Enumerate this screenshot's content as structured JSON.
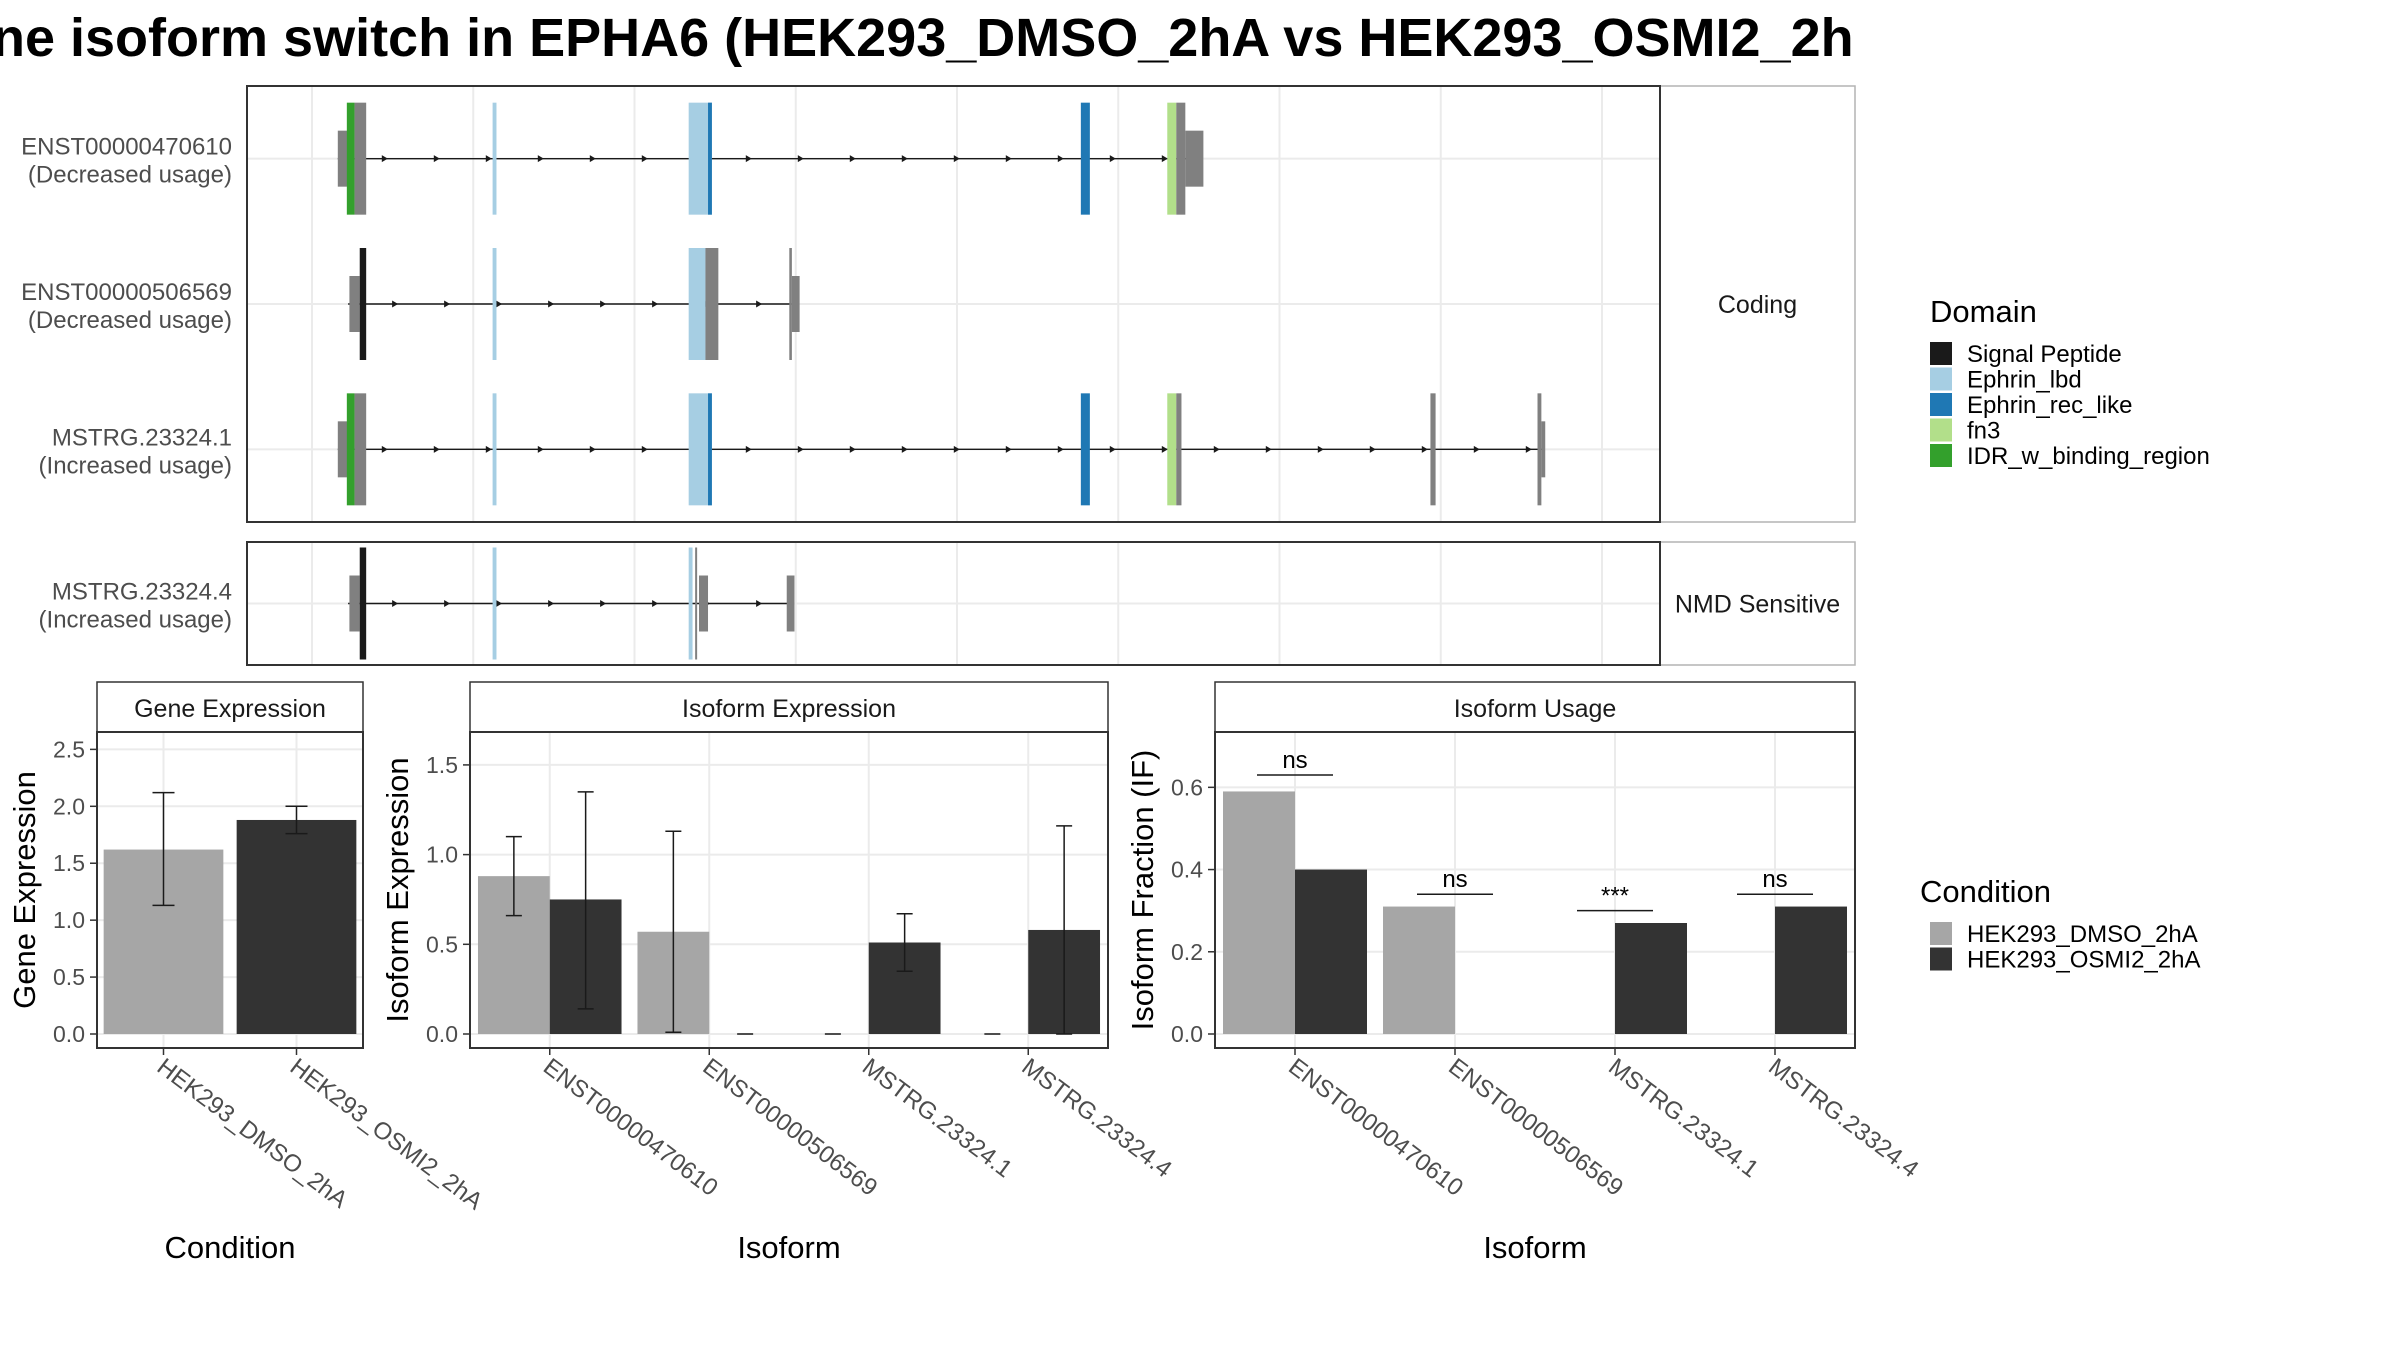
{
  "title": "ne isoform switch in EPHA6 (HEK293_DMSO_2hA vs HEK293_OSMI2_2h",
  "colors": {
    "grey_cond": "#a6a6a6",
    "dark_cond": "#333333",
    "untagged": "#808080",
    "panel_border": "#333333",
    "strip_fill": "#ffffff",
    "grid": "#ebebeb"
  },
  "structure": {
    "x_range": [
      0,
      1000
    ],
    "strips": {
      "coding": "Coding",
      "nmd": "NMD Sensitive"
    },
    "isoforms": [
      {
        "id": "ENST00000470610",
        "annotation": "(Decreased usage)",
        "category": "coding",
        "intron": [
          20,
          690
        ],
        "exons": [
          {
            "start": 20,
            "end": 31,
            "tall": false,
            "domain": null
          },
          {
            "start": 27,
            "end": 33,
            "tall": true,
            "domain": "IDR_w_binding_region"
          },
          {
            "start": 33,
            "end": 42,
            "tall": true,
            "domain": null
          },
          {
            "start": 140,
            "end": 143,
            "tall": true,
            "domain": "Ephrin_lbd"
          },
          {
            "start": 292,
            "end": 310,
            "tall": true,
            "domain": "Ephrin_lbd"
          },
          {
            "start": 307,
            "end": 310,
            "tall": true,
            "domain": "Ephrin_rec_like"
          },
          {
            "start": 596,
            "end": 603,
            "tall": true,
            "domain": "Ephrin_rec_like"
          },
          {
            "start": 663,
            "end": 670,
            "tall": true,
            "domain": "fn3"
          },
          {
            "start": 670,
            "end": 677,
            "tall": true,
            "domain": null
          },
          {
            "start": 677,
            "end": 691,
            "tall": false,
            "domain": null
          }
        ]
      },
      {
        "id": "ENST00000506569",
        "annotation": "(Decreased usage)",
        "category": "coding",
        "intron": [
          28,
          372
        ],
        "exons": [
          {
            "start": 29,
            "end": 37,
            "tall": false,
            "domain": null
          },
          {
            "start": 37,
            "end": 42,
            "tall": true,
            "domain": "Signal Peptide"
          },
          {
            "start": 140,
            "end": 143,
            "tall": true,
            "domain": "Ephrin_lbd"
          },
          {
            "start": 292,
            "end": 305,
            "tall": true,
            "domain": "Ephrin_lbd"
          },
          {
            "start": 305,
            "end": 315,
            "tall": true,
            "domain": null
          },
          {
            "start": 370,
            "end": 372,
            "tall": true,
            "domain": null
          },
          {
            "start": 372,
            "end": 378,
            "tall": false,
            "domain": null
          }
        ]
      },
      {
        "id": "MSTRG.23324.1",
        "annotation": "(Increased usage)",
        "category": "coding",
        "intron": [
          20,
          954
        ],
        "exons": [
          {
            "start": 20,
            "end": 31,
            "tall": false,
            "domain": null
          },
          {
            "start": 27,
            "end": 33,
            "tall": true,
            "domain": "IDR_w_binding_region"
          },
          {
            "start": 33,
            "end": 42,
            "tall": true,
            "domain": null
          },
          {
            "start": 140,
            "end": 143,
            "tall": true,
            "domain": "Ephrin_lbd"
          },
          {
            "start": 292,
            "end": 310,
            "tall": true,
            "domain": "Ephrin_lbd"
          },
          {
            "start": 307,
            "end": 310,
            "tall": true,
            "domain": "Ephrin_rec_like"
          },
          {
            "start": 596,
            "end": 603,
            "tall": true,
            "domain": "Ephrin_rec_like"
          },
          {
            "start": 663,
            "end": 670,
            "tall": true,
            "domain": "fn3"
          },
          {
            "start": 670,
            "end": 674,
            "tall": true,
            "domain": null
          },
          {
            "start": 867,
            "end": 871,
            "tall": true,
            "domain": null
          },
          {
            "start": 950,
            "end": 953,
            "tall": true,
            "domain": null
          },
          {
            "start": 953,
            "end": 956,
            "tall": false,
            "domain": null
          }
        ]
      },
      {
        "id": "MSTRG.23324.4",
        "annotation": "(Increased usage)",
        "category": "nmd",
        "intron": [
          28,
          372
        ],
        "exons": [
          {
            "start": 29,
            "end": 37,
            "tall": false,
            "domain": null
          },
          {
            "start": 37,
            "end": 42,
            "tall": true,
            "domain": "Signal Peptide"
          },
          {
            "start": 140,
            "end": 143,
            "tall": true,
            "domain": "Ephrin_lbd"
          },
          {
            "start": 292,
            "end": 295,
            "tall": true,
            "domain": "Ephrin_lbd"
          },
          {
            "start": 297,
            "end": 298,
            "tall": true,
            "domain": null
          },
          {
            "start": 300,
            "end": 307,
            "tall": false,
            "domain": null
          },
          {
            "start": 368,
            "end": 374,
            "tall": false,
            "domain": null
          }
        ]
      }
    ]
  },
  "domain_legend": {
    "title": "Domain",
    "entries": [
      {
        "name": "Signal Peptide",
        "color": "#1a1a1a"
      },
      {
        "name": "Ephrin_lbd",
        "color": "#a6cee3"
      },
      {
        "name": "Ephrin_rec_like",
        "color": "#1f78b4"
      },
      {
        "name": "fn3",
        "color": "#b2df8a"
      },
      {
        "name": "IDR_w_binding_region",
        "color": "#33a02c"
      }
    ]
  },
  "condition_legend": {
    "title": "Condition",
    "entries": [
      {
        "name": "HEK293_DMSO_2hA",
        "color": "#a6a6a6"
      },
      {
        "name": "HEK293_OSMI2_2hA",
        "color": "#333333"
      }
    ]
  },
  "chart_data": [
    {
      "type": "bar",
      "title": "Gene Expression",
      "xlabel": "Condition",
      "ylabel": "Gene Expression",
      "ylim": [
        0,
        2.6
      ],
      "yticks": [
        "0.0",
        "0.5",
        "1.0",
        "1.5",
        "2.0",
        "2.5"
      ],
      "categories": [
        "HEK293_DMSO_2hA",
        "HEK293_OSMI2_2hA"
      ],
      "values": [
        1.62,
        1.88
      ],
      "error_low": [
        1.13,
        1.76
      ],
      "error_high": [
        2.12,
        2.0
      ]
    },
    {
      "type": "bar",
      "title": "Isoform Expression",
      "xlabel": "Isoform",
      "ylabel": "Isoform Expression",
      "ylim": [
        0,
        1.65
      ],
      "yticks": [
        "0.0",
        "0.5",
        "1.0",
        "1.5"
      ],
      "categories": [
        "ENST00000470610",
        "ENST00000506569",
        "MSTRG.23324.1",
        "MSTRG.23324.4"
      ],
      "series": [
        {
          "name": "HEK293_DMSO_2hA",
          "values": [
            0.88,
            0.57,
            0,
            0
          ],
          "error_low": [
            0.66,
            0.01,
            0,
            0
          ],
          "error_high": [
            1.1,
            1.13,
            0,
            0
          ]
        },
        {
          "name": "HEK293_OSMI2_2hA",
          "values": [
            0.75,
            0,
            0.51,
            0.58
          ],
          "error_low": [
            0.14,
            0,
            0.35,
            0.0
          ],
          "error_high": [
            1.35,
            0,
            0.67,
            1.16
          ]
        }
      ]
    },
    {
      "type": "bar",
      "title": "Isoform Usage",
      "xlabel": "Isoform",
      "ylabel": "Isoform Fraction (IF)",
      "ylim": [
        0,
        0.72
      ],
      "yticks": [
        "0.0",
        "0.2",
        "0.4",
        "0.6"
      ],
      "categories": [
        "ENST00000470610",
        "ENST00000506569",
        "MSTRG.23324.1",
        "MSTRG.23324.4"
      ],
      "series": [
        {
          "name": "HEK293_DMSO_2hA",
          "values": [
            0.59,
            0.31,
            0,
            0
          ]
        },
        {
          "name": "HEK293_OSMI2_2hA",
          "values": [
            0.4,
            0,
            0.27,
            0.31
          ]
        }
      ],
      "significance": [
        {
          "label": "ns",
          "y": 0.63
        },
        {
          "label": "ns",
          "y": 0.34
        },
        {
          "label": "***",
          "y": 0.3
        },
        {
          "label": "ns",
          "y": 0.34
        }
      ]
    }
  ]
}
